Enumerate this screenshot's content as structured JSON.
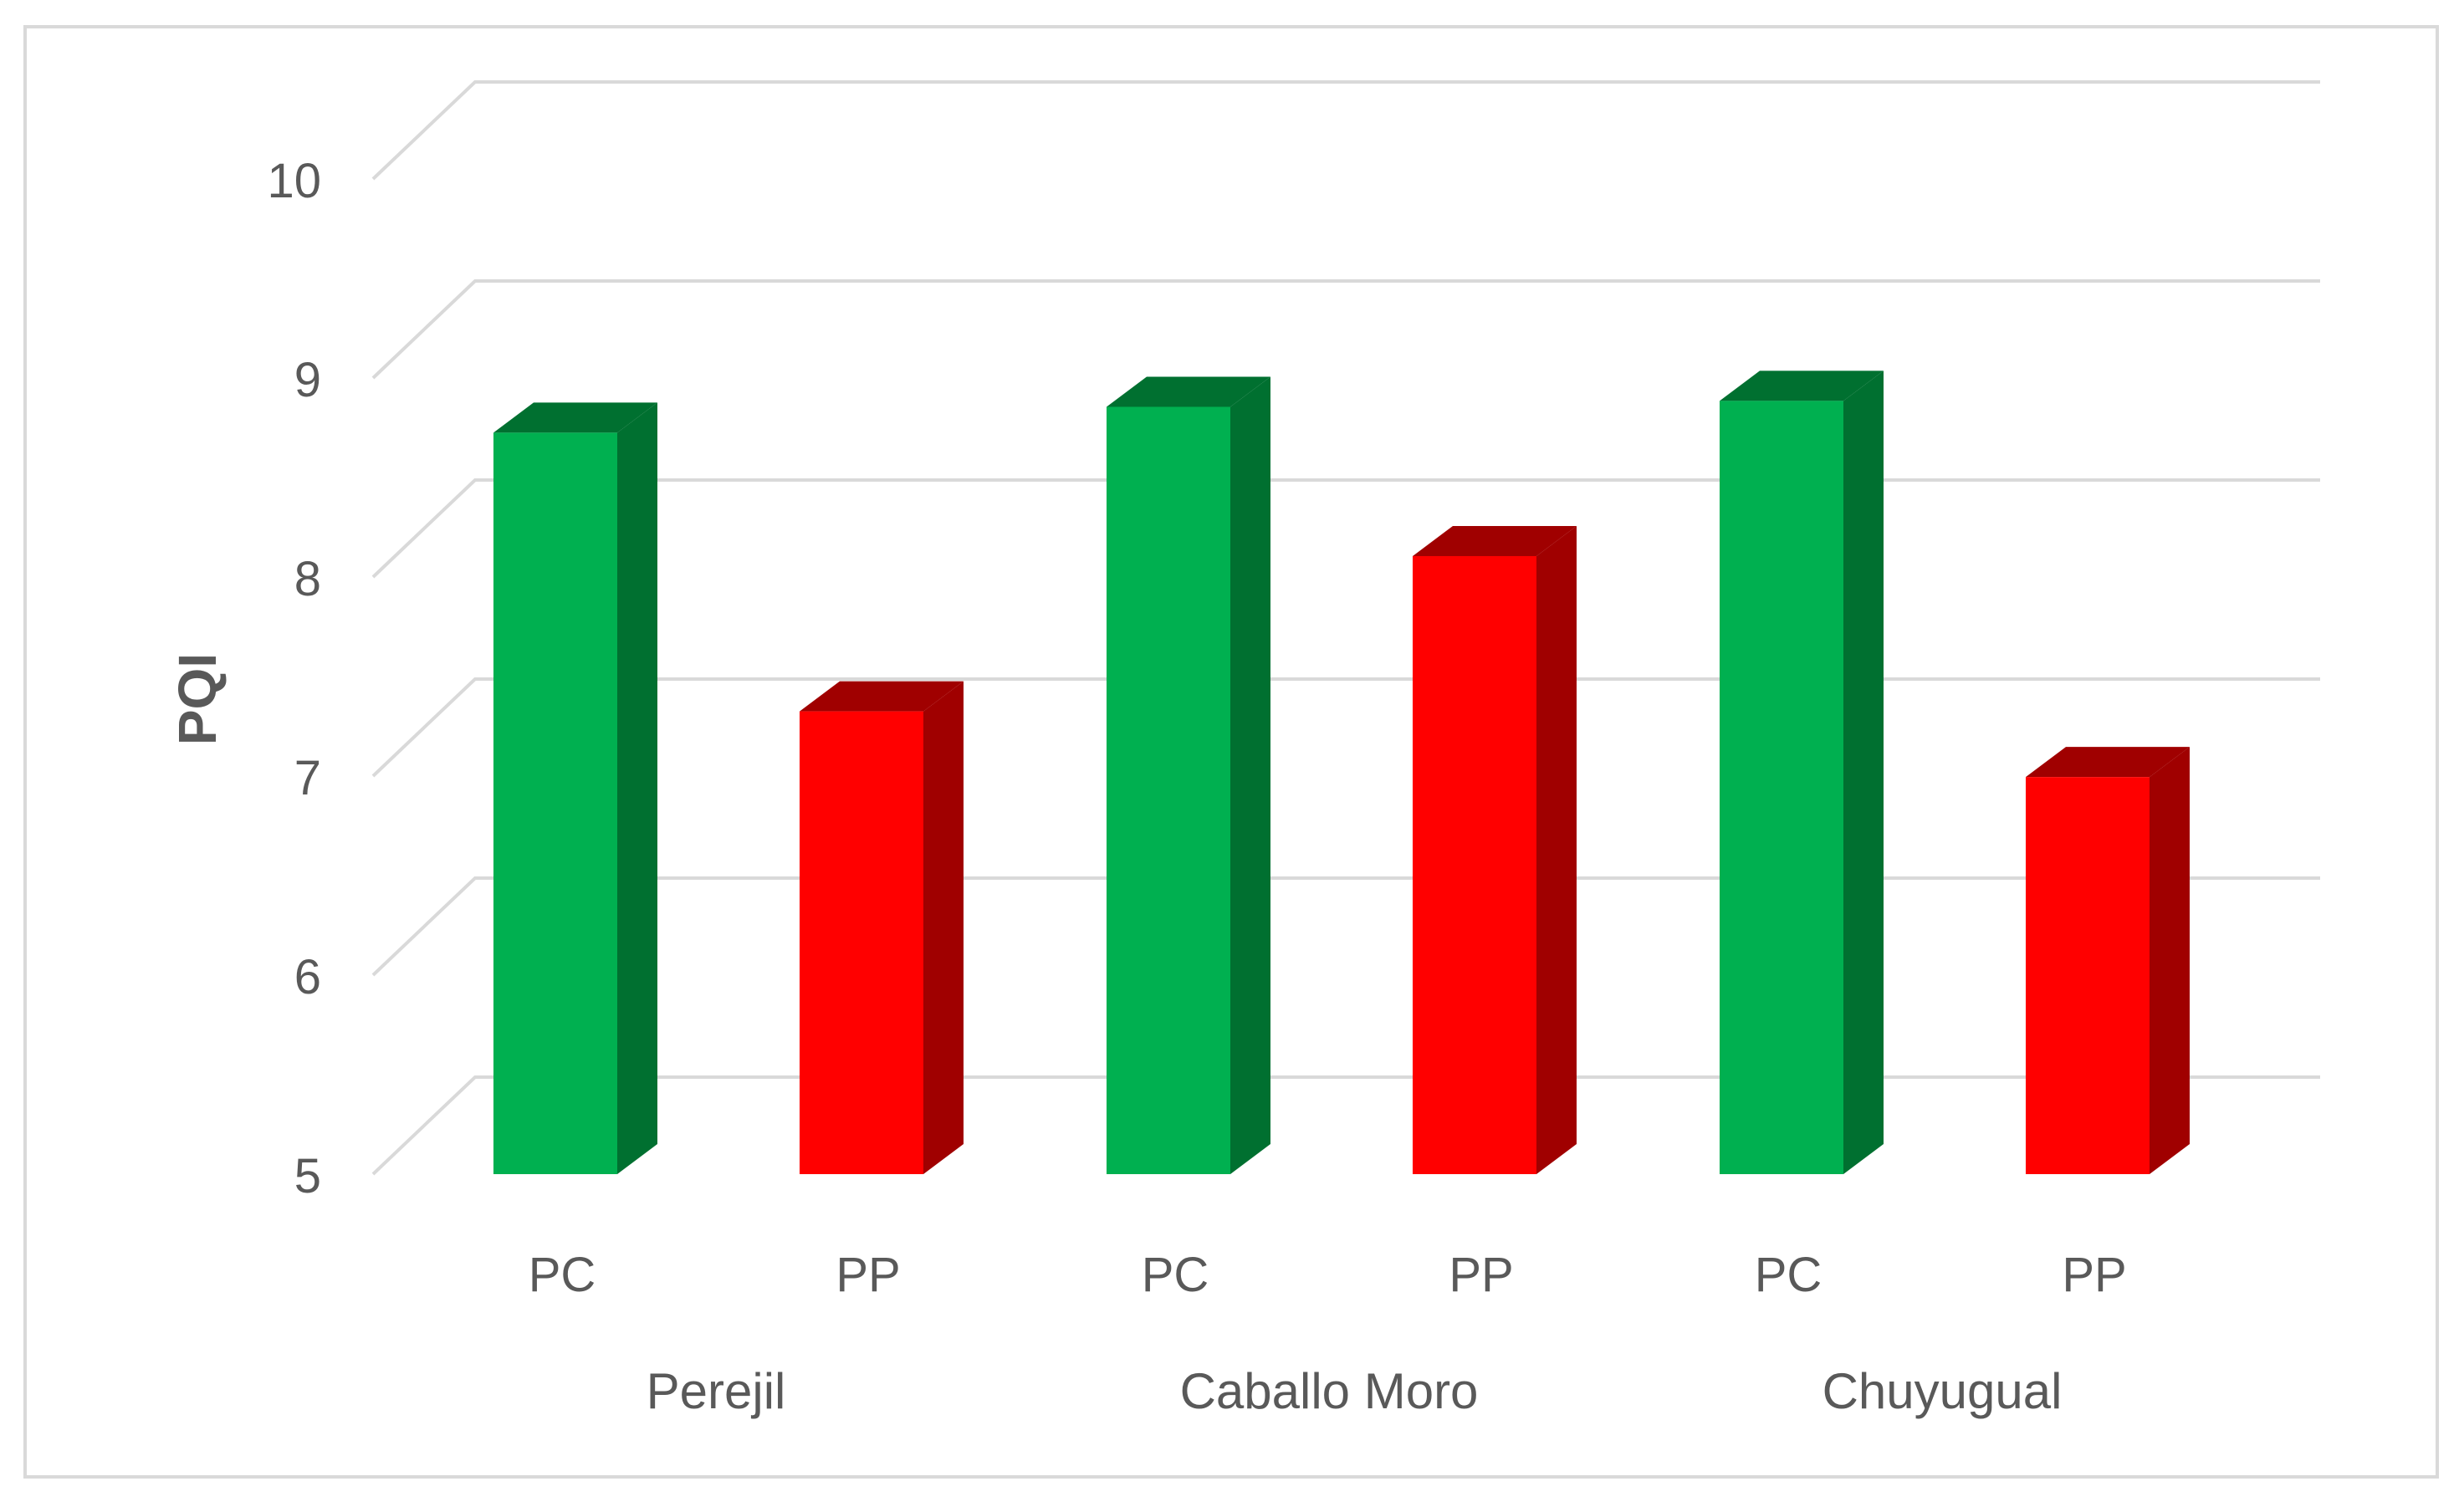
{
  "chart_data": {
    "type": "bar",
    "title": "",
    "ylabel": "PQI",
    "xlabel": "",
    "ylim": [
      5,
      10
    ],
    "yticks": [
      5,
      6,
      7,
      8,
      9,
      10
    ],
    "grid": true,
    "three_d": true,
    "groups": [
      {
        "label": "Perejil",
        "bars": [
          {
            "category": "PC",
            "value": 8.7,
            "color": "#00b050",
            "side_color": "#007030"
          },
          {
            "category": "PP",
            "value": 7.3,
            "color": "#ff0000",
            "side_color": "#a00000"
          }
        ]
      },
      {
        "label": "Caballo Moro",
        "bars": [
          {
            "category": "PC",
            "value": 8.83,
            "color": "#00b050",
            "side_color": "#007030"
          },
          {
            "category": "PP",
            "value": 8.08,
            "color": "#ff0000",
            "side_color": "#a00000"
          }
        ]
      },
      {
        "label": "Chuyugual",
        "bars": [
          {
            "category": "PC",
            "value": 8.86,
            "color": "#00b050",
            "side_color": "#007030"
          },
          {
            "category": "PP",
            "value": 6.97,
            "color": "#ff0000",
            "side_color": "#a00000"
          }
        ]
      }
    ]
  }
}
